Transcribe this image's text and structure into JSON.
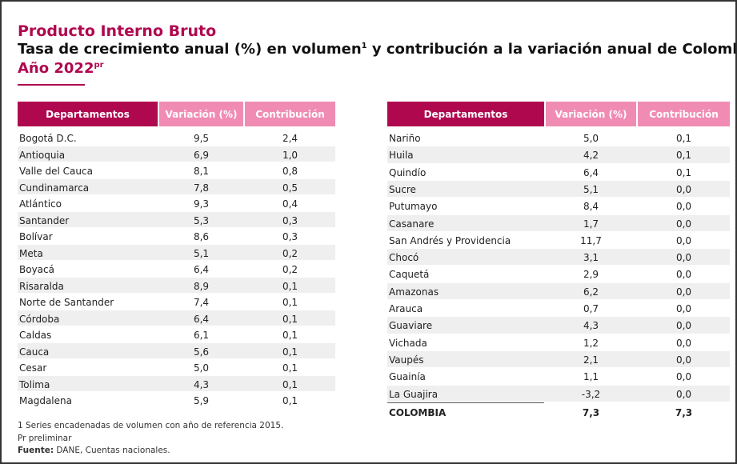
{
  "header": {
    "title": "Producto Interno Bruto",
    "subtitle": "Tasa de crecimiento anual (%) en volumen",
    "subtitle_sup": "1",
    "subtitle_end": " y contribución a la variación anual de Colombia",
    "year": "Año 2022",
    "year_sup": "pr"
  },
  "tables": [
    {
      "columns": [
        "Departamentos",
        "Variación (%)",
        "Contribución"
      ],
      "rows": [
        [
          "Bogotá D.C.",
          "9,5",
          "2,4"
        ],
        [
          "Antioquia",
          "6,9",
          "1,0"
        ],
        [
          "Valle del Cauca",
          "8,1",
          "0,8"
        ],
        [
          "Cundinamarca",
          "7,8",
          "0,5"
        ],
        [
          "Atlántico",
          "9,3",
          "0,4"
        ],
        [
          "Santander",
          "5,3",
          "0,3"
        ],
        [
          "Bolívar",
          "8,6",
          "0,3"
        ],
        [
          "Meta",
          "5,1",
          "0,2"
        ],
        [
          "Boyacá",
          "6,4",
          "0,2"
        ],
        [
          "Risaralda",
          "8,9",
          "0,1"
        ],
        [
          "Norte de Santander",
          "7,4",
          "0,1"
        ],
        [
          "Córdoba",
          "6,4",
          "0,1"
        ],
        [
          "Caldas",
          "6,1",
          "0,1"
        ],
        [
          "Cauca",
          "5,6",
          "0,1"
        ],
        [
          "Cesar",
          "5,0",
          "0,1"
        ],
        [
          "Tolima",
          "4,3",
          "0,1"
        ],
        [
          "Magdalena",
          "5,9",
          "0,1"
        ]
      ]
    },
    {
      "columns": [
        "Departamentos",
        "Variación (%)",
        "Contribución"
      ],
      "rows": [
        [
          "Nariño",
          "5,0",
          "0,1"
        ],
        [
          "Huila",
          "4,2",
          "0,1"
        ],
        [
          "Quindío",
          "6,4",
          "0,1"
        ],
        [
          "Sucre",
          "5,1",
          "0,0"
        ],
        [
          "Putumayo",
          "8,4",
          "0,0"
        ],
        [
          "Casanare",
          "1,7",
          "0,0"
        ],
        [
          "San Andrés y Providencia",
          "11,7",
          "0,0"
        ],
        [
          "Chocó",
          "3,1",
          "0,0"
        ],
        [
          "Caquetá",
          "2,9",
          "0,0"
        ],
        [
          "Amazonas",
          "6,2",
          "0,0"
        ],
        [
          "Arauca",
          "0,7",
          "0,0"
        ],
        [
          "Guaviare",
          "4,3",
          "0,0"
        ],
        [
          "Vichada",
          "1,2",
          "0,0"
        ],
        [
          "Vaupés",
          "2,1",
          "0,0"
        ],
        [
          "Guainía",
          "1,1",
          "0,0"
        ],
        [
          "La Guajira",
          "-3,2",
          "0,0"
        ]
      ],
      "total": [
        "COLOMBIA",
        "7,3",
        "7,3"
      ]
    }
  ],
  "footnotes": {
    "note": "1 Series encadenadas de volumen con año de referencia 2015.",
    "preliminary": "Pr preliminar",
    "source_label": "Fuente:",
    "source": "DANE, Cuentas nacionales."
  }
}
